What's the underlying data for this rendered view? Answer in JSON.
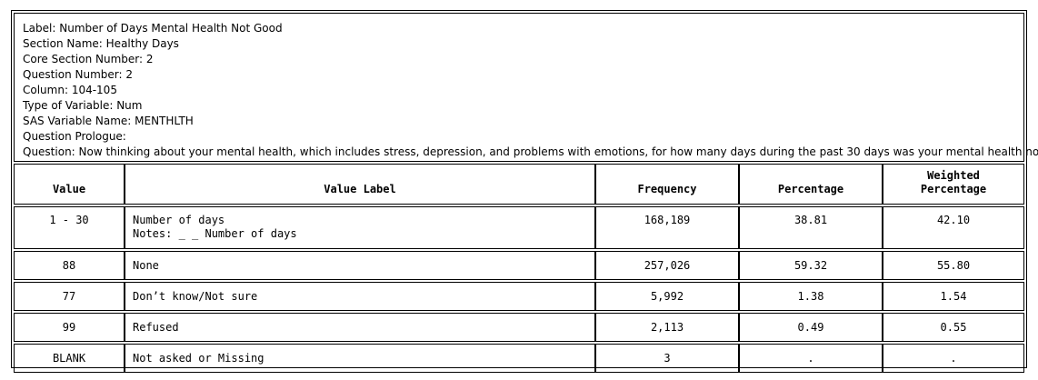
{
  "header": {
    "label": "Label: Number of Days Mental Health Not Good",
    "section_name": "Section Name: Healthy Days",
    "core_section_number": "Core Section Number: 2",
    "question_number": "Question Number: 2",
    "column": "Column: 104-105",
    "type_of_variable": "Type of Variable: Num",
    "sas_variable_name": "SAS Variable Name: MENTHLTH",
    "question_prologue": "Question Prologue:",
    "question": "Question:  Now thinking about your mental health, which includes stress, depression, and problems with emotions, for how many days during the past 30 days was your mental health not good?"
  },
  "table": {
    "columns": [
      "Value",
      "Value Label",
      "Frequency",
      "Percentage",
      "Weighted",
      "Percentage"
    ],
    "rows": [
      {
        "value": "1 - 30",
        "label": "Number of days",
        "note": "Notes: _ _ Number of days",
        "frequency": "168,189",
        "percentage": "38.81",
        "weighted": "42.10"
      },
      {
        "value": "88",
        "label": "None",
        "frequency": "257,026",
        "percentage": "59.32",
        "weighted": "55.80"
      },
      {
        "value": "77",
        "label": "Don’t know/Not sure",
        "frequency": "5,992",
        "percentage": "1.38",
        "weighted": "1.54"
      },
      {
        "value": "99",
        "label": "Refused",
        "frequency": "2,113",
        "percentage": "0.49",
        "weighted": "0.55"
      },
      {
        "value": "BLANK",
        "label": "Not asked or Missing",
        "frequency": "3",
        "percentage": ".",
        "weighted": "."
      }
    ]
  }
}
